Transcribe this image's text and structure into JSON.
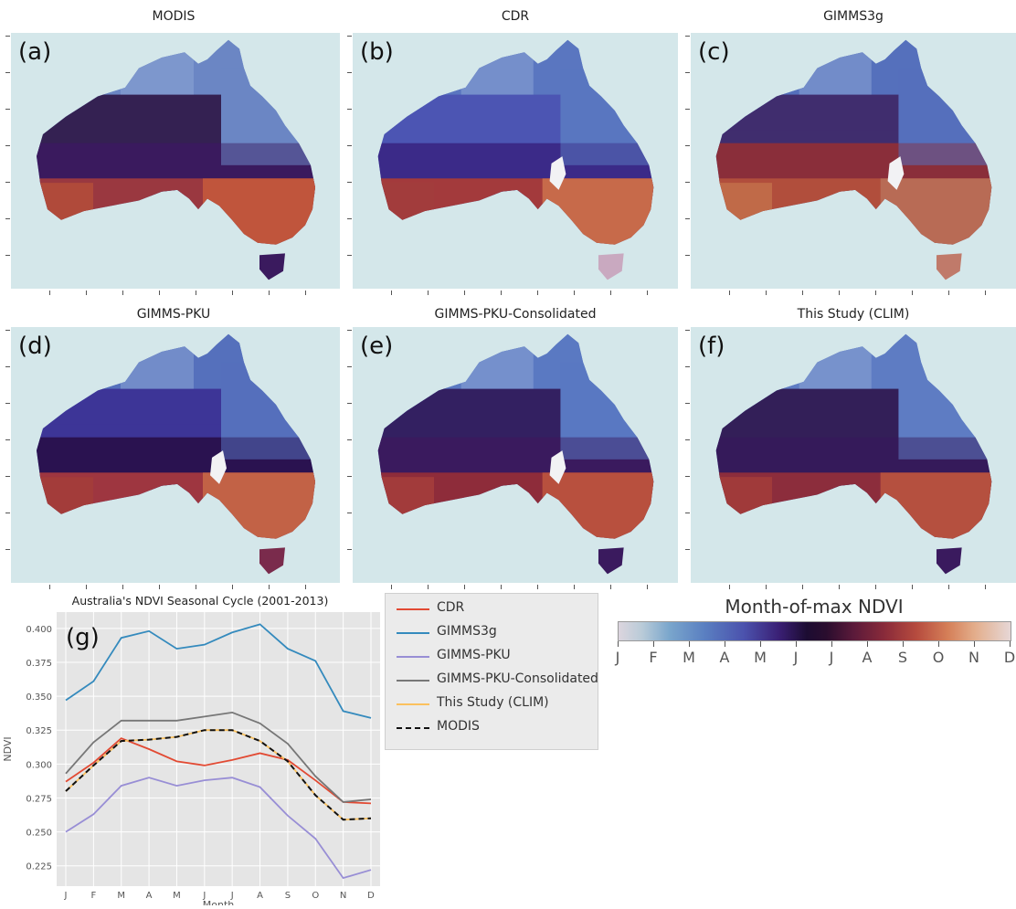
{
  "panels": [
    {
      "title": "MODIS",
      "label": "(a)",
      "scheme": "modis"
    },
    {
      "title": "CDR",
      "label": "(b)",
      "scheme": "cdr"
    },
    {
      "title": "GIMMS3g",
      "label": "(c)",
      "scheme": "g3g"
    },
    {
      "title": "GIMMS-PKU",
      "label": "(d)",
      "scheme": "pku"
    },
    {
      "title": "GIMMS-PKU-Consolidated",
      "label": "(e)",
      "scheme": "pkuc"
    },
    {
      "title": "This Study (CLIM)",
      "label": "(f)",
      "scheme": "clim"
    }
  ],
  "colorbar": {
    "title": "Month-of-max NDVI",
    "labels": [
      "J",
      "F",
      "M",
      "A",
      "M",
      "J",
      "J",
      "A",
      "S",
      "O",
      "N",
      "D"
    ]
  },
  "chart_data": {
    "type": "line",
    "panel_label": "(g)",
    "title": "Australia's NDVI Seasonal Cycle (2001-2013)",
    "xlabel": "Month",
    "ylabel": "NDVI",
    "categories": [
      "J",
      "F",
      "M",
      "A",
      "M",
      "J",
      "J",
      "A",
      "S",
      "O",
      "N",
      "D"
    ],
    "ylim": [
      0.21,
      0.412
    ],
    "yticks": [
      0.225,
      0.25,
      0.275,
      0.3,
      0.325,
      0.35,
      0.375,
      0.4
    ],
    "grid": true,
    "legend_position": "right-outside",
    "series": [
      {
        "name": "CDR",
        "color": "#e24a33",
        "dash": false,
        "values": [
          0.287,
          0.301,
          0.319,
          0.311,
          0.302,
          0.299,
          0.303,
          0.308,
          0.303,
          0.288,
          0.272,
          0.271
        ]
      },
      {
        "name": "GIMMS3g",
        "color": "#348abd",
        "dash": false,
        "values": [
          0.347,
          0.361,
          0.393,
          0.398,
          0.385,
          0.388,
          0.397,
          0.403,
          0.385,
          0.376,
          0.339,
          0.334
        ]
      },
      {
        "name": "GIMMS-PKU",
        "color": "#988ed5",
        "dash": false,
        "values": [
          0.25,
          0.263,
          0.284,
          0.29,
          0.284,
          0.288,
          0.29,
          0.283,
          0.262,
          0.245,
          0.216,
          0.222
        ]
      },
      {
        "name": "GIMMS-PKU-Consolidated",
        "color": "#777777",
        "dash": false,
        "values": [
          0.293,
          0.316,
          0.332,
          0.332,
          0.332,
          0.335,
          0.338,
          0.33,
          0.315,
          0.291,
          0.272,
          0.274
        ]
      },
      {
        "name": "This Study (CLIM)",
        "color": "#fbc15e",
        "dash": false,
        "values": [
          0.28,
          0.299,
          0.317,
          0.318,
          0.32,
          0.325,
          0.325,
          0.317,
          0.302,
          0.277,
          0.259,
          0.26
        ]
      },
      {
        "name": "MODIS",
        "color": "#111111",
        "dash": true,
        "values": [
          0.28,
          0.299,
          0.317,
          0.318,
          0.32,
          0.325,
          0.325,
          0.317,
          0.302,
          0.277,
          0.259,
          0.26
        ]
      }
    ]
  }
}
